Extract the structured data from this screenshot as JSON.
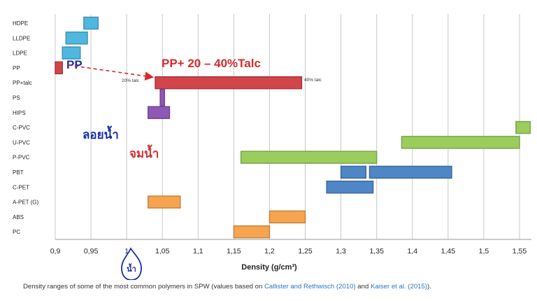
{
  "chart_data": {
    "type": "range-bar",
    "xlabel": "Density (g/cm³)",
    "xlim": [
      0.9,
      1.56
    ],
    "xticks": [
      "0,9",
      "0,95",
      "1",
      "1,05",
      "1,1",
      "1,15",
      "1,2",
      "1,25",
      "1,3",
      "1,35",
      "1,4",
      "1,45",
      "1,5",
      "1,55"
    ],
    "categories": [
      "HDPE",
      "LLDPE",
      "LDPE",
      "PP",
      "PP+talc",
      "PS",
      "HIPS",
      "C-PVC",
      "U-PVC",
      "P-PVC",
      "PBT",
      "C-PET",
      "A-PET (G)",
      "ABS",
      "PC"
    ],
    "bars": [
      {
        "category": "HDPE",
        "ranges": [
          [
            0.94,
            0.96
          ]
        ],
        "color": "#4fb8de"
      },
      {
        "category": "LLDPE",
        "ranges": [
          [
            0.915,
            0.945
          ]
        ],
        "color": "#4fb8de"
      },
      {
        "category": "LDPE",
        "ranges": [
          [
            0.91,
            0.935
          ]
        ],
        "color": "#4fb8de"
      },
      {
        "category": "PP",
        "ranges": [
          [
            0.9,
            0.91
          ]
        ],
        "color": "#d2454a"
      },
      {
        "category": "PP+talc",
        "ranges": [
          [
            1.04,
            1.245
          ]
        ],
        "color": "#d2454a"
      },
      {
        "category": "PS",
        "ranges": [
          [
            1.047,
            1.053
          ]
        ],
        "color": "#8e58b6"
      },
      {
        "category": "HIPS",
        "ranges": [
          [
            1.03,
            1.06
          ]
        ],
        "color": "#8e58b6"
      },
      {
        "category": "C-PVC",
        "ranges": [
          [
            1.545,
            1.565
          ]
        ],
        "color": "#9acd5c"
      },
      {
        "category": "U-PVC",
        "ranges": [
          [
            1.385,
            1.55
          ]
        ],
        "color": "#9acd5c"
      },
      {
        "category": "P-PVC",
        "ranges": [
          [
            1.16,
            1.35
          ]
        ],
        "color": "#9acd5c"
      },
      {
        "category": "PBT",
        "ranges": [
          [
            1.3,
            1.335
          ],
          [
            1.34,
            1.455
          ]
        ],
        "color": "#4f86c6"
      },
      {
        "category": "C-PET",
        "ranges": [
          [
            1.28,
            1.345
          ]
        ],
        "color": "#4f86c6"
      },
      {
        "category": "A-PET (G)",
        "ranges": [
          [
            1.03,
            1.075
          ]
        ],
        "color": "#f7a450"
      },
      {
        "category": "ABS",
        "ranges": [
          [
            1.2,
            1.25
          ]
        ],
        "color": "#f7a450"
      },
      {
        "category": "PC",
        "ranges": [
          [
            1.15,
            1.2
          ]
        ],
        "color": "#f7a450"
      }
    ],
    "grid": true,
    "annotations": {
      "pp_label": "PP",
      "pptalc_label": "PP+ 20 – 40%Talc",
      "talc20": "20% talc",
      "talc40": "40% talc",
      "float_label": "ลอยน้ำ",
      "sink_label": "จมน้ำ",
      "water_label": "น้ำ"
    }
  },
  "caption": {
    "prefix": "Density ranges of some of the most common polymers in SPW (values based on ",
    "ref1": "Callister and Rethwisch (2010)",
    "middle": " and ",
    "ref2": "Kaiser et al. (2015)",
    "suffix": ")."
  },
  "colors": {
    "red_annotation": "#d42c2c",
    "blue_annotation": "#1a2ea6",
    "grid": "#c8c8c8"
  }
}
